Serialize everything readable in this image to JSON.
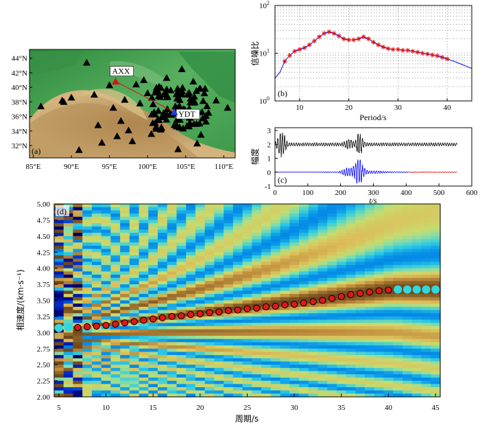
{
  "panel_a": {
    "label": "(a)",
    "stations": [
      {
        "name": "AXX",
        "lon": 95.8,
        "lat": 40.8
      },
      {
        "name": "YDT",
        "lon": 103.5,
        "lat": 36.6
      }
    ],
    "lon_ticks": [
      "85°E",
      "90°E",
      "95°E",
      "100°E",
      "105°E",
      "110°E"
    ],
    "lat_ticks": [
      "32°N",
      "34°N",
      "36°N",
      "38°N",
      "40°N",
      "42°N",
      "44°N"
    ],
    "colors": {
      "lowland": "#3f9e4c",
      "basin": "#c8a064",
      "highland": "#8a6a3c",
      "triangle": "#000000",
      "path": "#e01010"
    }
  },
  "chart_data": [
    {
      "type": "line",
      "panel_label": "(b)",
      "xlabel": "Period/s",
      "ylabel": "信噪比",
      "yscale": "log",
      "xlim": [
        5,
        45
      ],
      "ylim": [
        1,
        100
      ],
      "x_ticks": [
        "10",
        "20",
        "30",
        "40"
      ],
      "y_ticks": [
        "10^0",
        "10^1",
        "10^2"
      ],
      "grid": true,
      "line_color": "#0000ff",
      "marker_color": "#e01010",
      "x": [
        5,
        6,
        7,
        8,
        9,
        10,
        11,
        12,
        13,
        14,
        15,
        16,
        17,
        18,
        19,
        20,
        21,
        22,
        23,
        24,
        25,
        26,
        27,
        28,
        29,
        30,
        31,
        32,
        33,
        34,
        35,
        36,
        37,
        38,
        39,
        40,
        41,
        42,
        43,
        44,
        45
      ],
      "y": [
        3.0,
        4.0,
        6.8,
        9.0,
        11.0,
        12.0,
        13.0,
        15.0,
        18.0,
        22.0,
        26.0,
        28.0,
        26.0,
        23.0,
        20.0,
        19.0,
        19.0,
        20.0,
        22.0,
        20.0,
        17.0,
        15.0,
        13.5,
        12.5,
        12.0,
        12.0,
        11.5,
        11.5,
        11.0,
        10.5,
        10.0,
        9.6,
        9.2,
        8.8,
        8.2,
        7.6,
        7.0,
        6.4,
        5.8,
        5.3,
        4.8
      ],
      "marker_x_range": [
        7,
        40
      ]
    },
    {
      "type": "line",
      "panel_label": "(c)",
      "xlabel": "t/s",
      "ylabel": "幅度",
      "xlim": [
        0,
        600
      ],
      "ylim": [
        -1,
        3.2
      ],
      "x_ticks": [
        "0",
        "100",
        "200",
        "300",
        "400",
        "500",
        "600"
      ],
      "y_ticks": [
        "-1",
        "0",
        "1",
        "2",
        "3"
      ],
      "series": [
        {
          "color": "#000000",
          "offset": 2,
          "t_range": [
            0,
            555
          ]
        },
        {
          "color": "#0000ff",
          "offset": 0,
          "t_range": [
            0,
            405
          ]
        },
        {
          "color": "#e01010",
          "offset": 0,
          "t_range": [
            405,
            555
          ]
        }
      ]
    },
    {
      "type": "heatmap",
      "panel_label": "(d)",
      "xlabel": "周期/s",
      "ylabel": "相速度/(km·s⁻¹)",
      "xlim": [
        4.5,
        45.5
      ],
      "ylim": [
        2.0,
        5.0
      ],
      "x_ticks": [
        "5",
        "10",
        "15",
        "20",
        "25",
        "30",
        "35",
        "40",
        "45"
      ],
      "y_ticks": [
        "2.00",
        "2.25",
        "2.50",
        "2.75",
        "3.00",
        "3.25",
        "3.50",
        "3.75",
        "4.00",
        "4.25",
        "4.50",
        "4.75",
        "5.00"
      ],
      "dispersion_red": {
        "x": [
          7,
          8,
          9,
          10,
          11,
          12,
          13,
          14,
          15,
          16,
          17,
          18,
          19,
          20,
          21,
          22,
          23,
          24,
          25,
          26,
          27,
          28,
          29,
          30,
          31,
          32,
          33,
          34,
          35,
          36,
          37,
          38,
          39,
          40
        ],
        "y": [
          3.08,
          3.09,
          3.1,
          3.11,
          3.13,
          3.15,
          3.17,
          3.19,
          3.21,
          3.23,
          3.25,
          3.26,
          3.28,
          3.29,
          3.31,
          3.32,
          3.34,
          3.35,
          3.37,
          3.38,
          3.4,
          3.41,
          3.43,
          3.44,
          3.46,
          3.48,
          3.5,
          3.53,
          3.56,
          3.59,
          3.61,
          3.63,
          3.65,
          3.66
        ]
      },
      "dispersion_cyan": {
        "x": [
          5,
          6,
          41,
          42,
          43,
          44,
          45
        ],
        "y": [
          3.07,
          3.08,
          3.67,
          3.67,
          3.67,
          3.67,
          3.67
        ]
      },
      "colors": {
        "red_marker": "#e01818",
        "cyan_marker": "#30d8e0"
      }
    }
  ]
}
